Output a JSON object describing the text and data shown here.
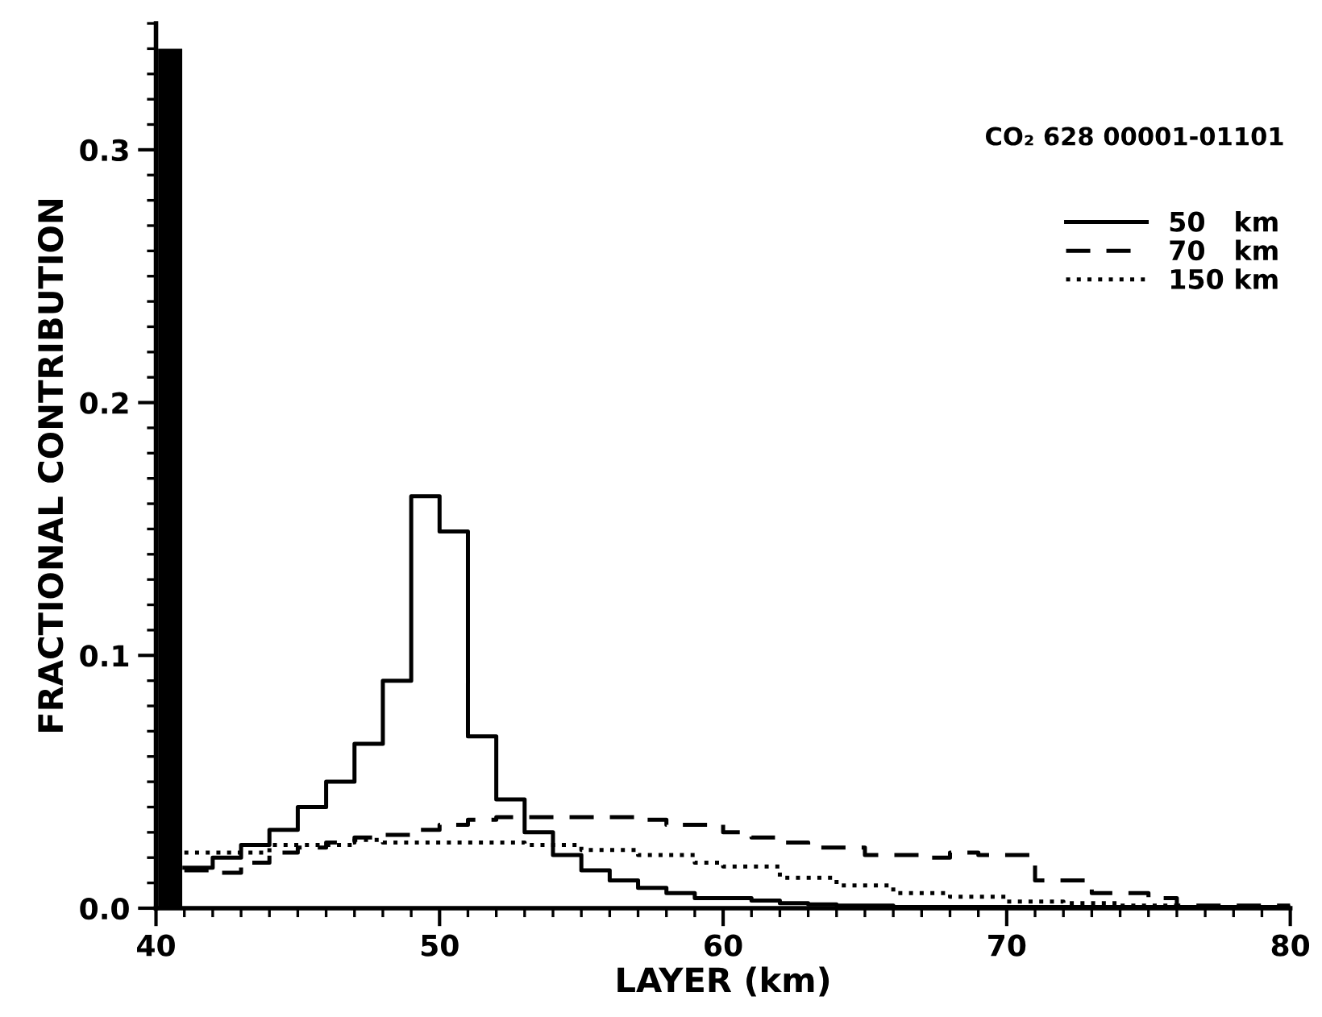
{
  "chart_data": {
    "type": "step",
    "xlabel": "LAYER (km)",
    "ylabel": "FRACTIONAL CONTRIBUTION",
    "annotations": [
      "CO₂ 628 00001-01101"
    ],
    "xlim": [
      40,
      80
    ],
    "xticks": [
      40,
      50,
      60,
      70,
      80
    ],
    "ylim": [
      0,
      0.35
    ],
    "yticks": [
      {
        "value": 0,
        "label": "0.0"
      },
      0.1,
      0.2,
      0.3
    ],
    "legend": "top right",
    "grid": false,
    "series": [
      {
        "type": "bar",
        "color": "#000000",
        "x": [
          40.5
        ],
        "values": [
          0.34
        ]
      },
      {
        "name": "50   km",
        "color": "#000000",
        "line_style": "solid",
        "x": [
          41,
          42,
          43,
          44,
          45,
          46,
          47,
          48,
          49,
          50,
          51,
          52,
          53,
          54,
          55,
          56,
          57,
          58,
          59,
          60,
          61,
          62,
          63,
          64,
          66,
          80
        ],
        "values": [
          0.016,
          0.02,
          0.025,
          0.031,
          0.04,
          0.05,
          0.065,
          0.09,
          0.163,
          0.149,
          0.068,
          0.043,
          0.03,
          0.021,
          0.015,
          0.011,
          0.008,
          0.006,
          0.004,
          0.004,
          0.003,
          0.002,
          0.0015,
          0.001,
          0.0005,
          0.0005
        ]
      },
      {
        "name": "70   km",
        "color": "#000000",
        "line_style": "dashed",
        "x": [
          41,
          42,
          43,
          44,
          45,
          46,
          47,
          48,
          49,
          50,
          51,
          52,
          57,
          58,
          59,
          60,
          61,
          62,
          63,
          65,
          67,
          68,
          69,
          71,
          72,
          73,
          74,
          75,
          76,
          80
        ],
        "values": [
          0.015,
          0.014,
          0.018,
          0.022,
          0.024,
          0.026,
          0.028,
          0.029,
          0.031,
          0.033,
          0.035,
          0.036,
          0.035,
          0.033,
          0.033,
          0.03,
          0.028,
          0.026,
          0.024,
          0.021,
          0.02,
          0.022,
          0.021,
          0.011,
          0.011,
          0.006,
          0.006,
          0.004,
          0.001,
          0.001
        ]
      },
      {
        "name": "150 km",
        "color": "#000000",
        "line_style": "dotted",
        "x": [
          41,
          44,
          47,
          48,
          53,
          55,
          57,
          59,
          60,
          62,
          64,
          66,
          68,
          70,
          72,
          74,
          76,
          80
        ],
        "values": [
          0.022,
          0.025,
          0.027,
          0.026,
          0.025,
          0.023,
          0.021,
          0.018,
          0.0165,
          0.012,
          0.009,
          0.006,
          0.0045,
          0.0026,
          0.002,
          0.001,
          0.0005,
          0.0005
        ]
      }
    ]
  }
}
